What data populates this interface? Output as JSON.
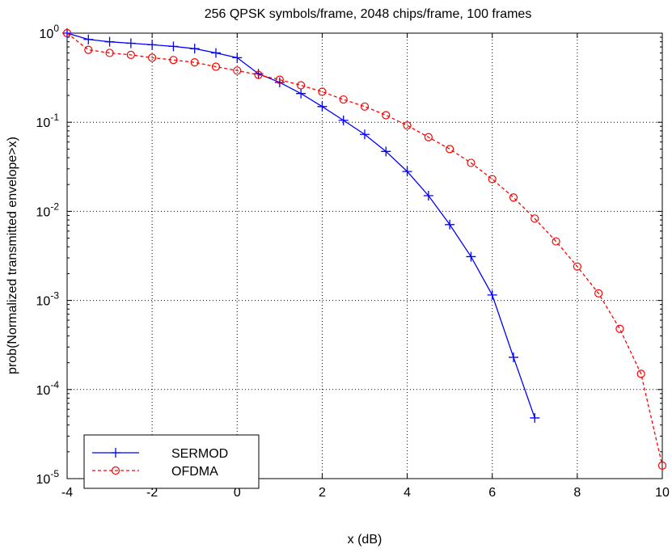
{
  "chart_data": {
    "type": "line",
    "title": "256 QPSK symbols/frame, 2048 chips/frame, 100 frames",
    "xlabel": "x (dB)",
    "ylabel": "prob(Normalized transmitted envelope>x)",
    "xlim": [
      -4,
      10
    ],
    "ylim": [
      1e-05,
      1
    ],
    "yscale": "log",
    "grid": true,
    "legend_position": "bottom-left",
    "x_ticks": [
      "-4",
      "-2",
      "0",
      "2",
      "4",
      "6",
      "8",
      "10"
    ],
    "y_ticks": [
      {
        "base": "10",
        "exp": "0"
      },
      {
        "base": "10",
        "exp": "-1"
      },
      {
        "base": "10",
        "exp": "-2"
      },
      {
        "base": "10",
        "exp": "-3"
      },
      {
        "base": "10",
        "exp": "-4"
      },
      {
        "base": "10",
        "exp": "-5"
      }
    ],
    "series": [
      {
        "name": "SERMOD",
        "color": "#0000ff",
        "line_style": "solid",
        "marker": "plus",
        "x": [
          -4,
          -3.5,
          -3,
          -2.5,
          -2,
          -1.5,
          -1,
          -0.5,
          0,
          0.5,
          1,
          1.5,
          2,
          2.5,
          3,
          3.5,
          4,
          4.5,
          5,
          5.5,
          6,
          6.5,
          7
        ],
        "y": [
          1.0,
          0.85,
          0.8,
          0.77,
          0.74,
          0.71,
          0.67,
          0.6,
          0.53,
          0.35,
          0.28,
          0.21,
          0.15,
          0.105,
          0.073,
          0.047,
          0.028,
          0.015,
          0.0071,
          0.0031,
          0.00115,
          0.00023,
          4.8e-05
        ]
      },
      {
        "name": "OFDMA",
        "color": "#ff0000",
        "line_style": "dashed",
        "marker": "circle",
        "x": [
          -4,
          -3.5,
          -3,
          -2.5,
          -2,
          -1.5,
          -1,
          -0.5,
          0,
          0.5,
          1,
          1.5,
          2,
          2.5,
          3,
          3.5,
          4,
          4.5,
          5,
          5.5,
          6,
          6.5,
          7,
          7.5,
          8,
          8.5,
          9,
          9.5,
          10
        ],
        "y": [
          1.0,
          0.65,
          0.6,
          0.57,
          0.53,
          0.5,
          0.47,
          0.42,
          0.38,
          0.34,
          0.3,
          0.26,
          0.22,
          0.18,
          0.15,
          0.12,
          0.092,
          0.068,
          0.05,
          0.035,
          0.023,
          0.0143,
          0.0083,
          0.0046,
          0.0024,
          0.0012,
          0.00048,
          0.00015,
          1.4e-05
        ]
      }
    ]
  }
}
